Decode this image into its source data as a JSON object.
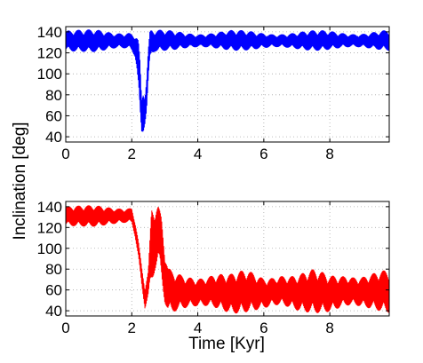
{
  "chart_data": [
    {
      "type": "line",
      "title": "",
      "xlabel": "",
      "ylabel": "Inclination [deg]",
      "xlim": [
        0,
        9.8
      ],
      "ylim": [
        35,
        145
      ],
      "xticks": [
        0,
        2,
        4,
        6,
        8
      ],
      "yticks": [
        40,
        60,
        80,
        100,
        120,
        140
      ],
      "grid": true,
      "series": [
        {
          "color": "#0000ff",
          "envelope": {
            "x": [
              0.0,
              0.5,
              1.0,
              1.5,
              1.9,
              2.0,
              2.1,
              2.15,
              2.2,
              2.25,
              2.3,
              2.35,
              2.4,
              2.45,
              2.5,
              2.55,
              2.6,
              2.7,
              2.8,
              3.0,
              4.0,
              5.0,
              6.0,
              7.0,
              8.0,
              9.0,
              9.8
            ],
            "upper": [
              143,
              142,
              143,
              142,
              143,
              142,
              142,
              142,
              140,
              120,
              80,
              90,
              85,
              100,
              125,
              142,
              143,
              142,
              142,
              142,
              141,
              142,
              141,
              141,
              142,
              141,
              142
            ],
            "lower": [
              120,
              121,
              120,
              121,
              120,
              118,
              112,
              100,
              78,
              50,
              38,
              40,
              50,
              62,
              90,
              110,
              118,
              121,
              121,
              122,
              122,
              122,
              122,
              122,
              122,
              122,
              122
            ]
          }
        }
      ]
    },
    {
      "type": "line",
      "title": "",
      "xlabel": "Time [Kyr]",
      "ylabel": "",
      "xlim": [
        0,
        9.8
      ],
      "ylim": [
        35,
        145
      ],
      "xticks": [
        0,
        2,
        4,
        6,
        8
      ],
      "yticks": [
        40,
        60,
        80,
        100,
        120,
        140
      ],
      "grid": true,
      "series": [
        {
          "color": "#ff0000",
          "envelope": {
            "x": [
              0.0,
              0.5,
              1.0,
              1.5,
              2.0,
              2.1,
              2.2,
              2.3,
              2.4,
              2.5,
              2.6,
              2.7,
              2.8,
              2.9,
              3.0,
              3.1,
              3.2,
              3.5,
              4.0,
              4.5,
              5.0,
              5.5,
              6.0,
              6.5,
              7.0,
              7.5,
              8.0,
              8.5,
              9.0,
              9.5,
              9.8
            ],
            "upper": [
              142,
              141,
              142,
              142,
              142,
              130,
              110,
              85,
              65,
              80,
              142,
              142,
              142,
              130,
              100,
              82,
              80,
              78,
              78,
              80,
              76,
              80,
              76,
              81,
              77,
              80,
              76,
              80,
              79,
              80,
              79
            ],
            "lower": [
              120,
              121,
              120,
              120,
              121,
              108,
              88,
              62,
              40,
              52,
              62,
              78,
              90,
              70,
              48,
              38,
              37,
              38,
              37,
              38,
              37,
              38,
              37,
              38,
              37,
              38,
              37,
              38,
              37,
              38,
              38
            ]
          }
        }
      ]
    }
  ]
}
